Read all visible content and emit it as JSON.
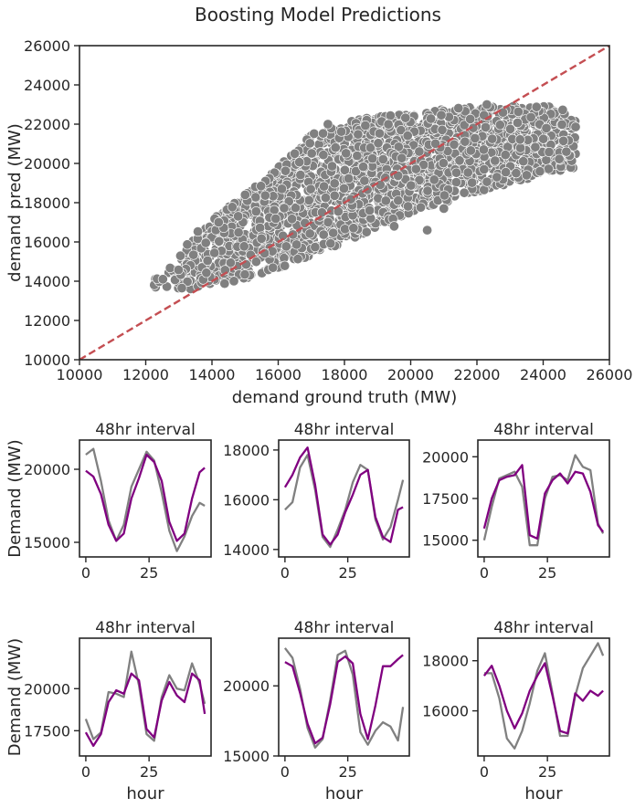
{
  "figure": {
    "title": "Boosting Model Predictions",
    "colors": {
      "scatter_point": "#808080",
      "diagonal": "#c44e52",
      "truth_line": "#808080",
      "pred_line": "#800080"
    }
  },
  "chart_data": [
    {
      "type": "scatter",
      "title": "Boosting Model Predictions",
      "xlabel": "demand ground truth (MW)",
      "ylabel": "demand pred (MW)",
      "xlim": [
        10000,
        26000
      ],
      "ylim": [
        10000,
        26000
      ],
      "xticks": [
        "10000",
        "12000",
        "14000",
        "16000",
        "18000",
        "20000",
        "22000",
        "24000",
        "26000"
      ],
      "yticks": [
        "10000",
        "12000",
        "14000",
        "16000",
        "18000",
        "20000",
        "22000",
        "24000",
        "26000"
      ],
      "reference_line": "y = x (dashed, red)",
      "cloud_outline": [
        [
          12200,
          13700
        ],
        [
          13400,
          13600
        ],
        [
          14500,
          13900
        ],
        [
          16000,
          14600
        ],
        [
          18000,
          16000
        ],
        [
          20000,
          17500
        ],
        [
          22000,
          18500
        ],
        [
          23000,
          19000
        ],
        [
          25000,
          19800
        ],
        [
          25000,
          22200
        ],
        [
          24500,
          22900
        ],
        [
          22500,
          22900
        ],
        [
          21000,
          22800
        ],
        [
          18500,
          22300
        ],
        [
          17000,
          21500
        ],
        [
          16000,
          19800
        ],
        [
          14500,
          17800
        ],
        [
          13500,
          16500
        ],
        [
          12800,
          14800
        ],
        [
          12200,
          14000
        ]
      ],
      "outliers": [
        [
          21000,
          17700
        ],
        [
          20500,
          16600
        ],
        [
          19500,
          16800
        ],
        [
          23500,
          19400
        ],
        [
          16500,
          20500
        ],
        [
          17500,
          22000
        ],
        [
          15000,
          18400
        ],
        [
          24800,
          20400
        ],
        [
          24700,
          20600
        ],
        [
          22600,
          19300
        ],
        [
          23900,
          19600
        ],
        [
          14200,
          17000
        ],
        [
          22300,
          23000
        ]
      ],
      "grid": false
    },
    {
      "type": "line",
      "title": "48hr interval",
      "xlabel": "",
      "ylabel": "Demand (MW)",
      "xlim": [
        -2.5,
        49.5
      ],
      "ylim": [
        14000,
        22000
      ],
      "xticks": [
        0,
        25
      ],
      "yticks": [
        15000,
        20000
      ],
      "x": [
        0,
        3,
        6,
        9,
        12,
        15,
        18,
        21,
        24,
        27,
        30,
        33,
        36,
        39,
        42,
        45,
        47
      ],
      "series": [
        {
          "values": [
            21000,
            21400,
            19200,
            16500,
            15100,
            16200,
            18800,
            20000,
            21200,
            20600,
            18400,
            15800,
            14400,
            15400,
            16800,
            17700,
            17500
          ]
        },
        {
          "values": [
            19900,
            19500,
            18300,
            16200,
            15100,
            15600,
            18000,
            19400,
            21000,
            20500,
            19200,
            16400,
            15100,
            15600,
            18000,
            19800,
            20100
          ]
        }
      ]
    },
    {
      "type": "line",
      "title": "48hr interval",
      "xlabel": "",
      "ylabel": "",
      "xlim": [
        -2.5,
        49.5
      ],
      "ylim": [
        13700,
        18400
      ],
      "xticks": [
        0,
        25
      ],
      "yticks": [
        14000,
        16000,
        18000
      ],
      "x": [
        0,
        3,
        6,
        9,
        12,
        15,
        18,
        21,
        24,
        27,
        30,
        33,
        36,
        39,
        42,
        45,
        47
      ],
      "series": [
        {
          "values": [
            15600,
            15900,
            17300,
            17800,
            16400,
            14500,
            14100,
            14800,
            15600,
            16700,
            17400,
            17200,
            15200,
            14400,
            14900,
            16000,
            16800
          ]
        },
        {
          "values": [
            16500,
            17000,
            17700,
            18100,
            16600,
            14600,
            14200,
            14600,
            15500,
            16200,
            17000,
            17200,
            15300,
            14500,
            14300,
            15600,
            15700
          ]
        }
      ]
    },
    {
      "type": "line",
      "title": "48hr interval",
      "xlabel": "",
      "ylabel": "",
      "xlim": [
        -2.5,
        49.5
      ],
      "ylim": [
        14000,
        21000
      ],
      "xticks": [
        0,
        25
      ],
      "yticks": [
        15000,
        17500,
        20000
      ],
      "x": [
        0,
        3,
        6,
        9,
        12,
        15,
        18,
        21,
        24,
        27,
        30,
        33,
        36,
        39,
        42,
        45,
        47
      ],
      "series": [
        {
          "values": [
            15000,
            17000,
            18700,
            18900,
            19100,
            18200,
            14700,
            14700,
            17500,
            18800,
            18900,
            18600,
            20100,
            19400,
            19200,
            16000,
            15400
          ]
        },
        {
          "values": [
            15700,
            17500,
            18600,
            18800,
            18900,
            19500,
            15300,
            15100,
            17800,
            18600,
            19000,
            18400,
            19100,
            19000,
            17900,
            15900,
            15500
          ]
        }
      ]
    },
    {
      "type": "line",
      "title": "48hr interval",
      "xlabel": "hour",
      "ylabel": "Demand (MW)",
      "xlim": [
        -2.5,
        49.5
      ],
      "ylim": [
        16000,
        23000
      ],
      "xticks": [
        0,
        25
      ],
      "yticks": [
        17500,
        20000
      ],
      "x": [
        0,
        3,
        6,
        9,
        12,
        15,
        18,
        21,
        24,
        27,
        30,
        33,
        36,
        39,
        42,
        45,
        47
      ],
      "series": [
        {
          "values": [
            18200,
            17000,
            17400,
            19800,
            19700,
            19500,
            22200,
            20200,
            17300,
            16900,
            19500,
            20800,
            20000,
            19900,
            21500,
            20300,
            19100
          ]
        },
        {
          "values": [
            17400,
            16600,
            17300,
            19200,
            19900,
            19700,
            20900,
            20500,
            17600,
            17100,
            19300,
            20400,
            19600,
            19200,
            20900,
            20500,
            18500
          ]
        }
      ]
    },
    {
      "type": "line",
      "title": "48hr interval",
      "xlabel": "hour",
      "ylabel": "",
      "xlim": [
        -2.5,
        49.5
      ],
      "ylim": [
        15000,
        23400
      ],
      "xticks": [
        0,
        25
      ],
      "yticks": [
        15000,
        20000
      ],
      "x": [
        0,
        3,
        6,
        9,
        12,
        15,
        18,
        21,
        24,
        27,
        30,
        33,
        36,
        39,
        42,
        45,
        47
      ],
      "series": [
        {
          "values": [
            22700,
            22000,
            19800,
            17000,
            15600,
            16200,
            19000,
            22200,
            22500,
            20800,
            16700,
            15800,
            16800,
            17400,
            17100,
            16100,
            18500
          ]
        },
        {
          "values": [
            21700,
            21400,
            19500,
            17300,
            15900,
            16300,
            18700,
            21700,
            22100,
            21600,
            18000,
            16200,
            18600,
            21400,
            21400,
            21900,
            22200
          ]
        }
      ]
    },
    {
      "type": "line",
      "title": "48hr interval",
      "xlabel": "hour",
      "ylabel": "",
      "xlim": [
        -2.5,
        49.5
      ],
      "ylim": [
        14200,
        18900
      ],
      "xticks": [
        0,
        25
      ],
      "yticks": [
        16000,
        18000
      ],
      "x": [
        0,
        3,
        6,
        9,
        12,
        15,
        18,
        21,
        24,
        27,
        30,
        33,
        36,
        39,
        42,
        45,
        47
      ],
      "series": [
        {
          "values": [
            17500,
            17500,
            16500,
            14900,
            14500,
            15200,
            16300,
            17600,
            18300,
            16700,
            15000,
            15000,
            16600,
            17700,
            18200,
            18700,
            18200
          ]
        },
        {
          "values": [
            17400,
            17800,
            17000,
            16000,
            15300,
            15900,
            16800,
            17400,
            17900,
            16600,
            15200,
            15100,
            16700,
            16400,
            16800,
            16600,
            16800
          ]
        }
      ]
    }
  ]
}
